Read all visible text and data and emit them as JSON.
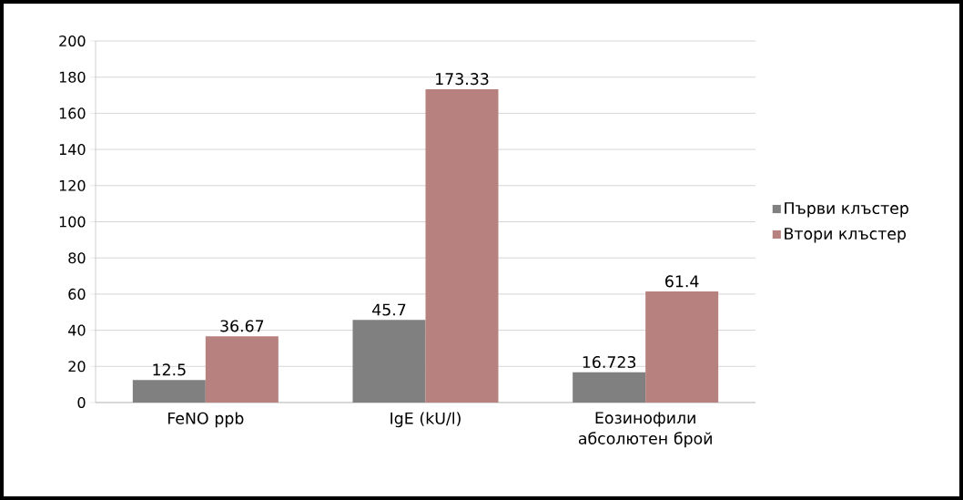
{
  "chart_data": {
    "type": "bar",
    "categories": [
      "FeNO ppb",
      "IgE (kU/l)",
      "Еозинофили абсолютен брой"
    ],
    "series": [
      {
        "name": "Първи клъстер",
        "color": "#808080",
        "values": [
          12.5,
          45.7,
          16.723
        ]
      },
      {
        "name": "Втори клъстер",
        "color": "#b7817f",
        "values": [
          36.67,
          173.33,
          61.4
        ]
      }
    ],
    "ylim": [
      0,
      200
    ],
    "yticks": [
      0,
      20,
      40,
      60,
      80,
      100,
      120,
      140,
      160,
      180,
      200
    ],
    "grid": "y",
    "legend": "right",
    "data_labels": true
  }
}
